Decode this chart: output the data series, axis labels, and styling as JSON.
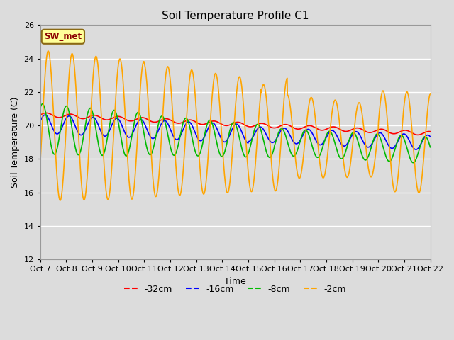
{
  "title": "Soil Temperature Profile C1",
  "xlabel": "Time",
  "ylabel": "Soil Temperature (C)",
  "ylim": [
    12,
    26
  ],
  "yticks": [
    12,
    14,
    16,
    18,
    20,
    22,
    24,
    26
  ],
  "fig_bg_color": "#dcdcdc",
  "plot_bg_color": "#dcdcdc",
  "annotation_text": "SW_met",
  "annotation_color": "#8b0000",
  "annotation_bg": "#ffff99",
  "annotation_border": "#8b6914",
  "series": {
    "-32cm": {
      "color": "#ff0000",
      "linewidth": 1.2
    },
    "-16cm": {
      "color": "#0000ff",
      "linewidth": 1.2
    },
    "-8cm": {
      "color": "#00bb00",
      "linewidth": 1.2
    },
    "-2cm": {
      "color": "#ffa500",
      "linewidth": 1.2
    }
  },
  "x_tick_labels": [
    "Oct 7",
    "Oct 8",
    "Oct 9",
    "Oct 10",
    "Oct 11",
    "Oct 12",
    "Oct 13",
    "Oct 14",
    "Oct 15",
    "Oct 16",
    "Oct 17",
    "Oct 18",
    "Oct 19",
    "Oct 20",
    "Oct 21",
    "Oct 22"
  ]
}
